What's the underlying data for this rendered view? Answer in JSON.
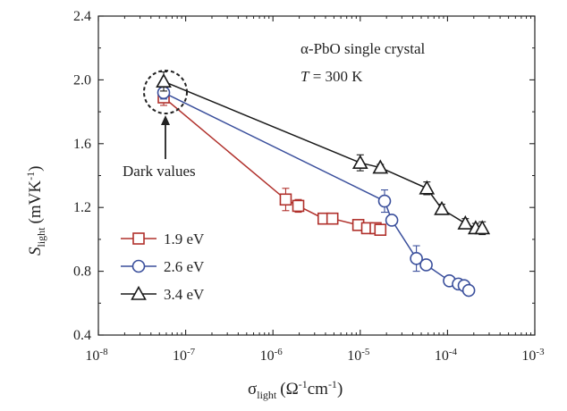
{
  "chart_data": {
    "type": "scatter",
    "title": "",
    "x_scale": "log",
    "xlim": [
      1e-08,
      0.001
    ],
    "ylim": [
      0.4,
      2.4
    ],
    "x_tick_exponents": [
      -8,
      -7,
      -6,
      -5,
      -4,
      -3
    ],
    "y_ticks": [
      "0.4",
      "0.8",
      "1.2",
      "1.6",
      "2.0",
      "2.4"
    ],
    "xlabel": {
      "base": "σ",
      "sub": "light",
      "unit": "(Ω-1cm-1)"
    },
    "ylabel": {
      "base": "S",
      "sub": "light",
      "unit": "(mVK-1)"
    },
    "annotations": {
      "sample": "α-PbO single crystal",
      "temperature": {
        "symbol": "T",
        "value": " = 300 K"
      },
      "dark": "Dark values"
    },
    "legend_position": "left",
    "series": [
      {
        "name": "1.9 eV",
        "marker": "square",
        "color": "#b0302b",
        "x": [
          5.6e-08,
          1.4e-06,
          1.95e-06,
          3.8e-06,
          4.8e-06,
          9.5e-06,
          1.2e-05,
          1.5e-05,
          1.7e-05
        ],
        "y": [
          1.89,
          1.25,
          1.21,
          1.13,
          1.13,
          1.09,
          1.07,
          1.07,
          1.06
        ],
        "err": [
          0.05,
          0.07,
          0.04,
          0.02,
          0.02,
          0.03,
          0.03,
          0.03,
          0.03
        ]
      },
      {
        "name": "2.6 eV",
        "marker": "circle",
        "color": "#3a4f9c",
        "x": [
          5.6e-08,
          1.9e-05,
          2.3e-05,
          4.4e-05,
          5.7e-05,
          0.000105,
          0.000133,
          0.000155,
          0.000175
        ],
        "y": [
          1.92,
          1.24,
          1.12,
          0.88,
          0.84,
          0.74,
          0.72,
          0.71,
          0.68
        ],
        "err": [
          0.04,
          0.07,
          0.03,
          0.08,
          0.02,
          0.02,
          0.02,
          0.02,
          0.02
        ]
      },
      {
        "name": "3.4 eV",
        "marker": "triangle",
        "color": "#1a1a1a",
        "x": [
          5.6e-08,
          1e-05,
          1.7e-05,
          5.8e-05,
          8.6e-05,
          0.00016,
          0.00021,
          0.00025
        ],
        "y": [
          1.99,
          1.48,
          1.45,
          1.32,
          1.19,
          1.1,
          1.07,
          1.07
        ],
        "err": [
          0.06,
          0.05,
          0.02,
          0.04,
          0.03,
          0.03,
          0.03,
          0.04
        ]
      }
    ]
  }
}
